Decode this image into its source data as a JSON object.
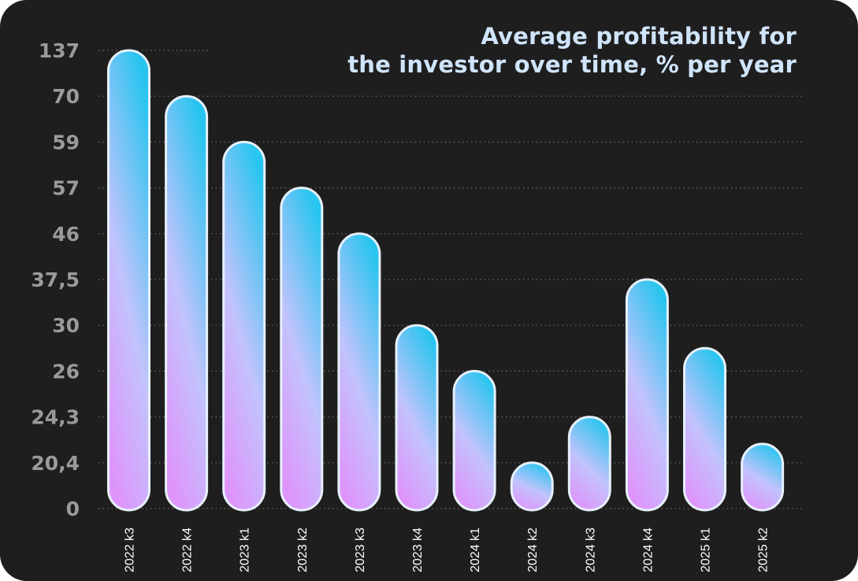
{
  "chart_data": {
    "type": "bar",
    "title_lines": [
      "Average profitability for",
      "the investor over time, % per year"
    ],
    "y_tick_labels": [
      "0",
      "20,4",
      "24,3",
      "26",
      "30",
      "37,5",
      "46",
      "57",
      "59",
      "70",
      "137"
    ],
    "scale_note": "categorical y axis: tick labels are evenly spaced regardless of value",
    "categories": [
      "2022 k3",
      "2022 k4",
      "2023 k1",
      "2023 k2",
      "2023 k3",
      "2023 k4",
      "2024 k1",
      "2024 k2",
      "2024 k3",
      "2024 k4",
      "2025 k1",
      "2025 k2"
    ],
    "values": [
      137,
      70,
      59,
      57,
      46,
      30,
      26,
      20.4,
      24.3,
      37.5,
      28,
      22
    ],
    "xlabel": "",
    "ylabel": "",
    "grid": true,
    "legend": "none",
    "colors": {
      "background": "#1e1e1e",
      "bar_gradient_top": "#27c5ef",
      "bar_gradient_mid": "#c2c3fc",
      "bar_gradient_bottom": "#de95fb",
      "bar_outline": "#e6f0fb",
      "title": "#cfe4fb",
      "y_tick": "#9a9a9a",
      "x_tick": "#ffffff",
      "grid": "#6a6a6a"
    }
  }
}
